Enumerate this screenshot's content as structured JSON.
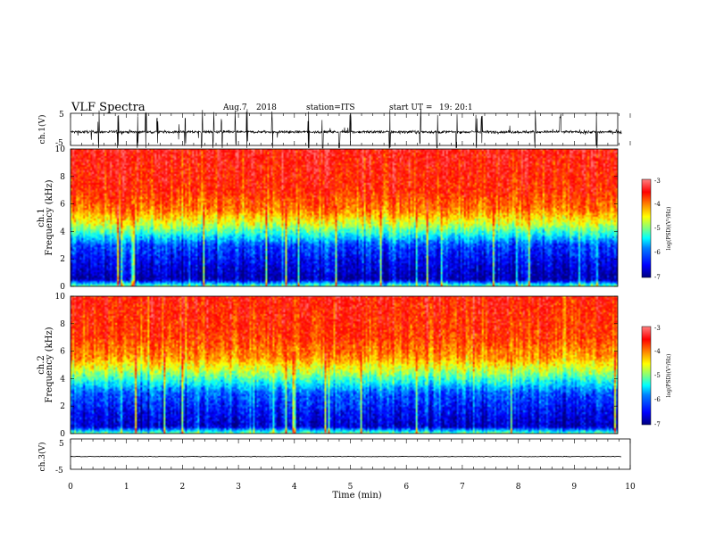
{
  "header": {
    "title": "VLF Spectra",
    "date": "Aug.7",
    "year": "2018",
    "station": "station=ITS",
    "start_label": "start  UT =",
    "start_time": "19: 20:1"
  },
  "axes": {
    "ch1_label": "ch.1(V)",
    "ch3_label": "ch.3(V)",
    "spec1_label": "ch.1",
    "spec2_label": "ch.2",
    "freq_label": "Frequency  (kHz)",
    "time_label": "Time  (min)",
    "colorbar_label": "log(PSD)(V²/Hz)"
  },
  "chart_data": [
    {
      "type": "line",
      "name": "ch1-waveform",
      "ylabel": "ch.1(V)",
      "ylim": [
        -5,
        5
      ],
      "yticks": [
        "5",
        "-5"
      ],
      "xlim": [
        0,
        10
      ],
      "baseline": -0.8,
      "spike_times": [
        0.5,
        0.85,
        1.2,
        1.35,
        1.55,
        2.05,
        2.35,
        2.55,
        2.7,
        2.95,
        3.15,
        3.6,
        4.25,
        4.5,
        4.8,
        5.0,
        5.7,
        6.25,
        6.55,
        6.9,
        7.25,
        7.35,
        8.3,
        8.75,
        9.4
      ]
    },
    {
      "type": "heatmap",
      "name": "ch1-spectrogram",
      "ylabel": "Frequency (kHz)",
      "ylim": [
        0,
        10
      ],
      "yticks": [
        "0",
        "2",
        "4",
        "6",
        "8",
        "10"
      ],
      "xlim": [
        0,
        9.85
      ],
      "colorbar": {
        "min": -7,
        "max": -3,
        "ticks": [
          "-3",
          "-4",
          "-5",
          "-6",
          "-7"
        ]
      },
      "profile_khz": [
        [
          0,
          -5.0
        ],
        [
          0.5,
          -6.8
        ],
        [
          1.5,
          -6.6
        ],
        [
          3,
          -6.2
        ],
        [
          3.8,
          -5.4
        ],
        [
          4.5,
          -4.7
        ],
        [
          5.5,
          -4.0
        ],
        [
          7,
          -3.6
        ],
        [
          10,
          -3.4
        ]
      ]
    },
    {
      "type": "heatmap",
      "name": "ch2-spectrogram",
      "ylabel": "Frequency (kHz)",
      "ylim": [
        0,
        10
      ],
      "yticks": [
        "0",
        "2",
        "4",
        "6",
        "8",
        "10"
      ],
      "xlim": [
        0,
        9.85
      ],
      "colorbar": {
        "min": -7,
        "max": -3,
        "ticks": [
          "-3",
          "-4",
          "-5",
          "-6",
          "-7"
        ]
      },
      "profile_khz": [
        [
          0,
          -5.0
        ],
        [
          0.5,
          -6.7
        ],
        [
          1.5,
          -6.5
        ],
        [
          3,
          -6.1
        ],
        [
          3.8,
          -5.4
        ],
        [
          4.5,
          -4.8
        ],
        [
          5.5,
          -4.1
        ],
        [
          7,
          -3.7
        ],
        [
          10,
          -3.5
        ]
      ]
    },
    {
      "type": "line",
      "name": "ch3-waveform",
      "ylabel": "ch.3(V)",
      "ylim": [
        -5,
        5
      ],
      "yticks": [
        "5",
        "-5"
      ],
      "xlabel": "Time  (min)",
      "xlim": [
        0,
        10
      ],
      "xticks": [
        "0",
        "1",
        "2",
        "3",
        "4",
        "5",
        "6",
        "7",
        "8",
        "9",
        "10"
      ],
      "baseline": -0.8
    }
  ],
  "colors": {
    "jet": [
      "#00007f",
      "#0000ff",
      "#007fff",
      "#00ffff",
      "#7fff7f",
      "#ffff00",
      "#ff7f00",
      "#ff0000",
      "#7f0000"
    ]
  }
}
